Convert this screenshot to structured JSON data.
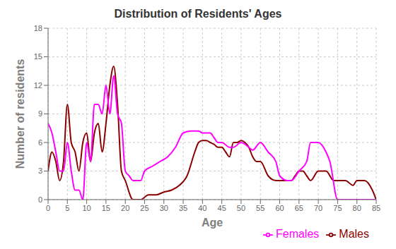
{
  "chart_data": {
    "type": "line",
    "title": "Distribution of Residents' Ages",
    "xlabel": "Age",
    "ylabel": "Number of residents",
    "xlim": [
      0,
      85
    ],
    "ylim": [
      0,
      18
    ],
    "xticks": [
      0,
      5,
      10,
      15,
      20,
      25,
      30,
      35,
      40,
      45,
      50,
      55,
      60,
      65,
      70,
      75,
      80,
      85
    ],
    "yticks": [
      0,
      3,
      6,
      9,
      12,
      15,
      18
    ],
    "grid": true,
    "legend": "lower right",
    "series": [
      {
        "name": "Males",
        "color": "#8B0000",
        "x": [
          0,
          1,
          2,
          3,
          4,
          5,
          6,
          7,
          8,
          9,
          10,
          11,
          12,
          13,
          14,
          15,
          16,
          17,
          18,
          19,
          20,
          22,
          24,
          26,
          28,
          30,
          32,
          34,
          36,
          38,
          39,
          40,
          41,
          42,
          43,
          44,
          45,
          46,
          47,
          48,
          49,
          50,
          51,
          52,
          53,
          54,
          55,
          57,
          59,
          60,
          62,
          63,
          64,
          65,
          66,
          67,
          68,
          70,
          72,
          74,
          75,
          77,
          79,
          80,
          82,
          84,
          85
        ],
        "values": [
          3,
          5,
          4,
          2,
          4,
          10,
          6,
          5,
          3,
          6,
          7,
          4,
          7,
          8,
          5,
          8,
          12,
          14,
          10,
          3,
          2,
          0,
          0,
          0.5,
          0.5,
          0.8,
          1,
          1.5,
          2.5,
          5,
          6,
          6.2,
          6.2,
          6,
          5.8,
          5.5,
          5.5,
          5,
          4.5,
          6,
          6,
          6.2,
          6,
          5.5,
          4.5,
          4,
          4,
          2.5,
          2,
          2,
          2,
          2,
          2.5,
          3,
          3,
          2.5,
          2,
          3,
          3,
          2,
          2,
          2,
          1.5,
          2,
          2,
          1,
          0
        ]
      },
      {
        "name": "Females",
        "color": "#FF00FF",
        "x": [
          0,
          1,
          2,
          3,
          4,
          5,
          6,
          7,
          8,
          9,
          10,
          11,
          12,
          13,
          14,
          15,
          16,
          17,
          18,
          19,
          20,
          21,
          22,
          23,
          24,
          25,
          27,
          29,
          31,
          33,
          35,
          37,
          38,
          39,
          40,
          41,
          42,
          43,
          44,
          45,
          47,
          48,
          50,
          52,
          53,
          55,
          57,
          59,
          60,
          62,
          63,
          65,
          67,
          68,
          70,
          72,
          73,
          75,
          77,
          79,
          80,
          82,
          84,
          85
        ],
        "values": [
          8,
          7,
          5,
          3,
          3,
          6,
          3,
          1,
          1,
          0,
          6,
          4,
          10,
          10,
          9,
          12,
          9,
          13,
          9,
          8,
          3,
          2.5,
          2,
          2,
          2,
          3,
          3.5,
          4,
          4.5,
          5.5,
          7,
          7.2,
          7.2,
          7.2,
          7,
          7,
          7,
          6.5,
          6,
          6,
          5.5,
          5.5,
          6,
          5.5,
          5.2,
          6,
          5,
          4,
          2.5,
          2,
          2,
          3,
          4,
          6,
          6,
          5,
          4,
          0,
          0,
          0,
          0,
          0,
          0,
          0
        ]
      }
    ]
  }
}
